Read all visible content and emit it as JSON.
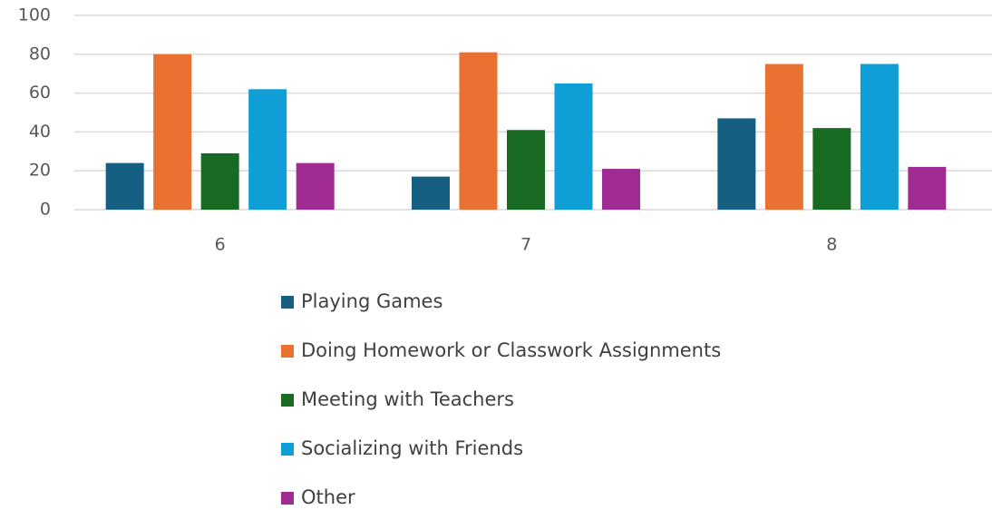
{
  "chart_data": {
    "type": "bar",
    "categories": [
      "6",
      "7",
      "8"
    ],
    "series": [
      {
        "name": "Playing Games",
        "color": "#156082",
        "values": [
          24,
          17,
          47
        ]
      },
      {
        "name": "Doing Homework or Classwork Assignments",
        "color": "#e97132",
        "values": [
          80,
          81,
          75
        ]
      },
      {
        "name": "Meeting with Teachers",
        "color": "#196b24",
        "values": [
          29,
          41,
          42
        ]
      },
      {
        "name": "Socializing with Friends",
        "color": "#0f9ed5",
        "values": [
          62,
          65,
          75
        ]
      },
      {
        "name": "Other",
        "color": "#a02b93",
        "values": [
          24,
          21,
          22
        ]
      }
    ],
    "ylim": [
      0,
      100
    ],
    "yticks": [
      0,
      20,
      40,
      60,
      80,
      100
    ],
    "grid": true,
    "legend": "bottom"
  }
}
